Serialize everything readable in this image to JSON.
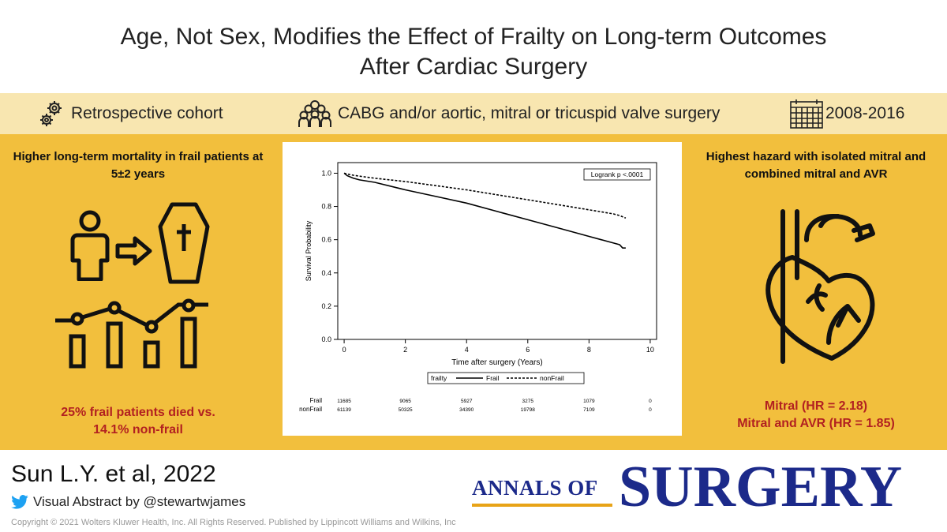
{
  "title": {
    "line1": "Age, Not Sex, Modifies the Effect of Frailty on Long-term Outcomes",
    "line2": "After Cardiac Surgery"
  },
  "band": {
    "design": "Retrospective cohort",
    "population": "CABG and/or aortic, mitral or tricuspid valve surgery",
    "period": "2008-2016",
    "icons": [
      "gears-icon",
      "group-icon",
      "calendar-icon"
    ]
  },
  "left_panel": {
    "heading_line1": "Higher long-term mortality in frail patients at",
    "heading_line2": "5±2 years",
    "result_line1": "25% frail patients died vs.",
    "result_line2": "14.1% non-frail",
    "icons": [
      "person-icon",
      "arrow-right-icon",
      "coffin-icon",
      "trend-chart-icon"
    ],
    "icon_color": "#111111",
    "bg_color": "#f2bf3d"
  },
  "right_panel": {
    "heading_line1": "Highest hazard with isolated mitral and",
    "heading_line2": "combined mitral and AVR",
    "result_line1": "Mitral (HR = 2.18)",
    "result_line2": "Mitral and AVR (HR = 1.85)",
    "icons": [
      "heart-icon"
    ],
    "result_color": "#b22121"
  },
  "chart_data": {
    "type": "line",
    "ylabel": "Survival Probability",
    "xlabel": "Time after surgery (Years)",
    "xlim": [
      0,
      10
    ],
    "ylim": [
      0,
      1.0
    ],
    "x_ticks": [
      0,
      2,
      4,
      6,
      8,
      10
    ],
    "x_tick_labels": [
      "0",
      "2",
      "4",
      "6",
      "8",
      "10"
    ],
    "y_ticks": [
      0.0,
      0.2,
      0.4,
      0.6,
      0.8,
      1.0
    ],
    "y_tick_labels": [
      "0.0",
      "0.2",
      "0.4",
      "0.6",
      "0.8",
      "1.0"
    ],
    "annotation": "Logrank p <.0001",
    "legend_title": "frailty",
    "legend_position": "bottom",
    "series": [
      {
        "name": "Frail",
        "style": "solid",
        "x": [
          0,
          0.1,
          0.3,
          0.5,
          1,
          2,
          3,
          4,
          5,
          6,
          7,
          8,
          8.8,
          9.0,
          9.1,
          9.2
        ],
        "y": [
          1.0,
          0.985,
          0.97,
          0.96,
          0.945,
          0.9,
          0.86,
          0.82,
          0.77,
          0.72,
          0.67,
          0.62,
          0.58,
          0.57,
          0.55,
          0.55
        ]
      },
      {
        "name": "nonFrail",
        "style": "dashed",
        "x": [
          0,
          0.1,
          0.3,
          0.5,
          1,
          2,
          3,
          4,
          5,
          6,
          7,
          8,
          8.8,
          9.0,
          9.2
        ],
        "y": [
          1.0,
          0.995,
          0.988,
          0.982,
          0.97,
          0.95,
          0.925,
          0.9,
          0.87,
          0.84,
          0.81,
          0.78,
          0.755,
          0.745,
          0.73
        ]
      }
    ],
    "risk_table": {
      "rows": [
        {
          "label": "Frail",
          "values": [
            "11685",
            "9065",
            "5927",
            "3275",
            "1079",
            "0"
          ]
        },
        {
          "label": "nonFrail",
          "values": [
            "61139",
            "50325",
            "34390",
            "19798",
            "7109",
            "0"
          ]
        }
      ]
    }
  },
  "footer": {
    "author": "Sun L.Y. et al, 2022",
    "byline": "Visual Abstract by @stewartwjames",
    "copyright": "Copyright © 2021 Wolters Kluwer Health, Inc. All Rights Reserved. Published by Lippincott Williams and Wilkins, Inc",
    "journal_small": "ANNALS OF",
    "journal_big": "SURGERY",
    "brand_color": "#1c2a8a",
    "twitter_color": "#1da1f2"
  }
}
